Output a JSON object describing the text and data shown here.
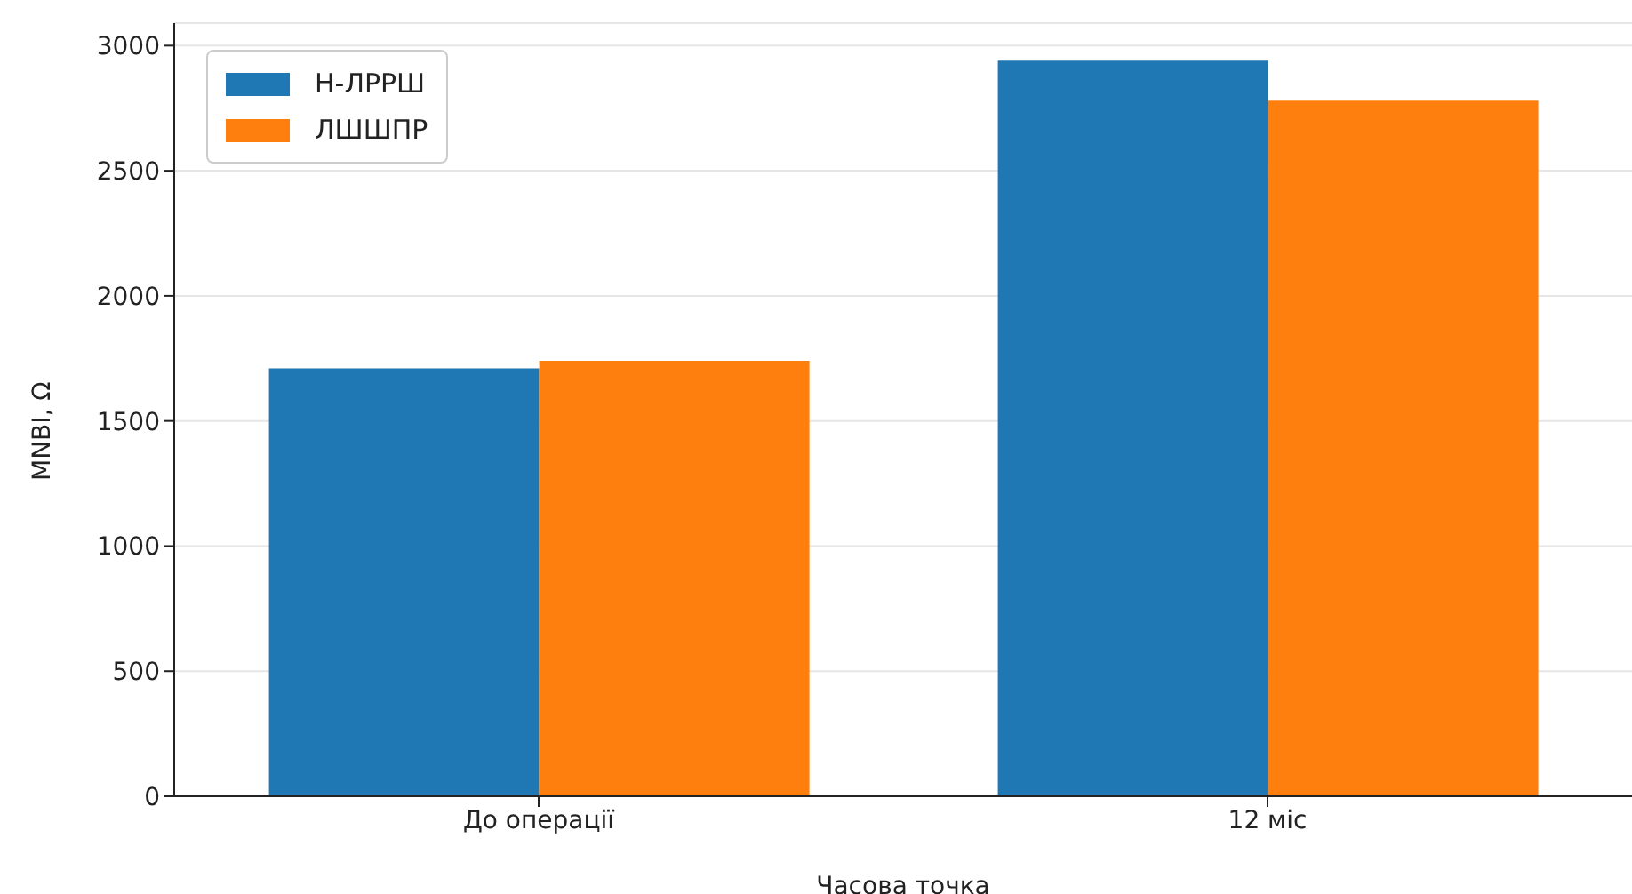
{
  "chart_data": {
    "type": "bar",
    "xlabel": "Часова точка",
    "ylabel": "MNBI, Ω",
    "categories": [
      "До операції",
      "12 міс"
    ],
    "series": [
      {
        "name": "Н-ЛРРШ",
        "color": "#1f77b4",
        "values": [
          1710,
          2940
        ]
      },
      {
        "name": "ЛШШПР",
        "color": "#ff7f0e",
        "values": [
          1740,
          2780
        ]
      }
    ],
    "ylim": [
      0,
      3090
    ],
    "yticks": [
      0,
      500,
      1000,
      1500,
      2000,
      2500,
      3000
    ],
    "grid": "y",
    "legend": "top left"
  }
}
